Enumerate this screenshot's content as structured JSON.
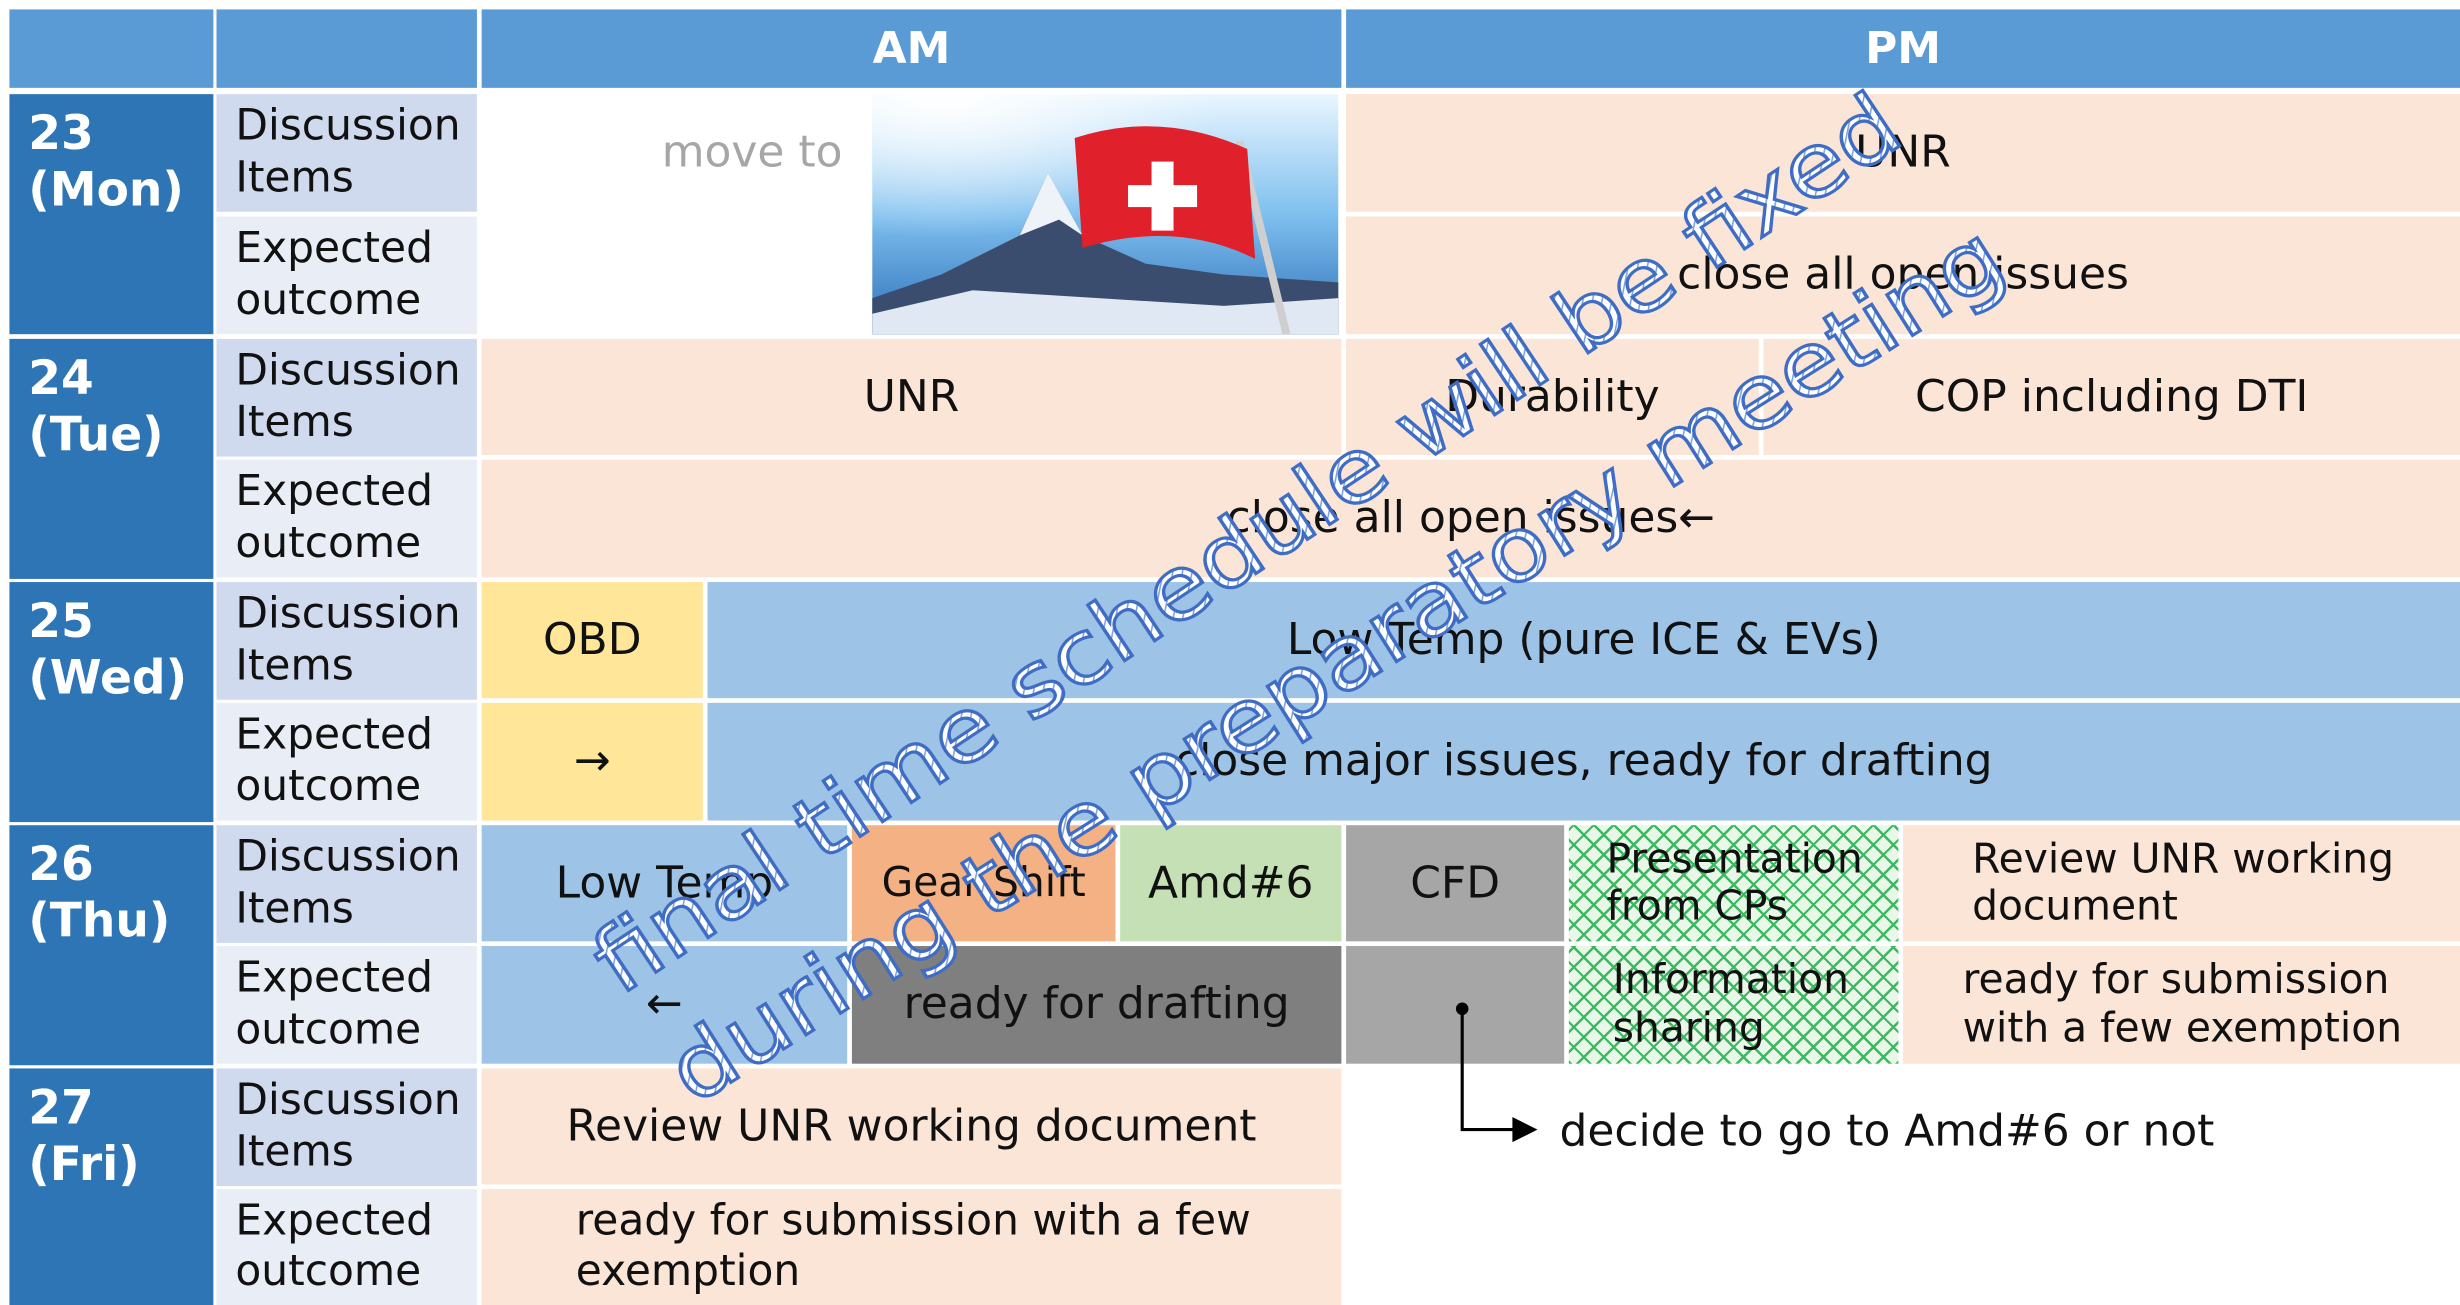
{
  "header": {
    "am": "AM",
    "pm": "PM"
  },
  "days": [
    {
      "date": "23",
      "weekday": "(Mon)"
    },
    {
      "date": "24",
      "weekday": "(Tue)"
    },
    {
      "date": "25",
      "weekday": "(Wed)"
    },
    {
      "date": "26",
      "weekday": "(Thu)"
    },
    {
      "date": "27",
      "weekday": "(Fri)"
    }
  ],
  "row_labels": {
    "discussion": "Discussion Items",
    "outcome": "Expected outcome"
  },
  "cells": [
    "move to",
    "UNR",
    "close all open issues",
    "UNR",
    "Durability",
    "COP including DTI",
    "close all open issues←",
    "OBD",
    "Low Temp (pure ICE & EVs)",
    "→",
    "close major issues, ready for drafting",
    "Low Temp",
    "Gear Shift",
    "Amd#6",
    "CFD",
    "Presentation from CPs",
    "Review UNR working document",
    "←",
    "ready for drafting",
    "Information sharing",
    "ready for submission with a few exemption",
    "Review UNR working document",
    "ready for submission with a few exemption"
  ],
  "note": "decide to go to Amd#6 or not",
  "watermark": [
    "final time schedule will be fixed",
    "during the preparatory meeting"
  ]
}
